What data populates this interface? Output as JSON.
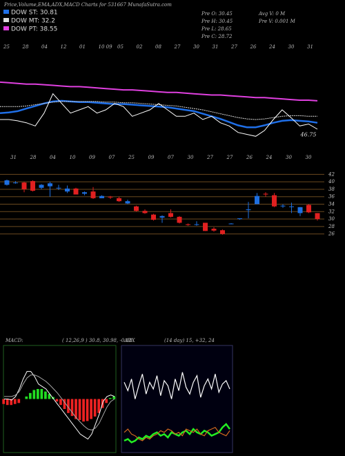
{
  "header": {
    "title": "Price,Volume,EMA,ADX,MACD Charts for 531667 MunafaSutra.com",
    "stats": [
      "Pre  O: 30.45",
      "Pre  H: 30.45",
      "Pre  L: 28.65",
      "Pre  C: 28.72",
      "Avg V: 0  M",
      "Pre  V: 0.001 M"
    ]
  },
  "chart_data": [
    {
      "type": "line",
      "top_labels": [
        "25",
        "28",
        "04",
        "12",
        "01",
        "10 09",
        "05",
        "02",
        "08",
        "27",
        "30",
        "31",
        "27",
        "26",
        "24",
        "30",
        "31"
      ],
      "bottom_labels": [
        "31",
        "28",
        "04",
        "10",
        "09",
        "07",
        "25",
        "09",
        "07",
        "30",
        "27",
        "27",
        "26",
        "24",
        "30",
        "30"
      ],
      "annotation": 46.75,
      "ylim": [
        45,
        60
      ],
      "price": {
        "color": "#ffffff",
        "values": [
          49.5,
          49.5,
          49.3,
          49,
          48.5,
          50.5,
          53.5,
          52,
          50.5,
          51,
          51.5,
          50.5,
          51,
          52,
          51.5,
          50,
          50.5,
          51,
          52,
          51,
          50,
          50,
          50.5,
          49.5,
          50,
          49,
          48.5,
          47.5,
          47.2,
          46.9,
          47.8,
          49.5,
          51,
          49.8,
          48.5,
          48.8,
          48
        ]
      },
      "series": [
        {
          "name": "DOW ST: 30.81",
          "color": "#1f6fe8",
          "values": [
            50.5,
            50.6,
            50.8,
            51.2,
            51.6,
            52,
            52.3,
            52.4,
            52.3,
            52.2,
            52.2,
            52.1,
            52,
            51.9,
            51.9,
            51.8,
            51.7,
            51.6,
            51.5,
            51.4,
            51.2,
            51,
            50.8,
            50.4,
            50,
            49.6,
            49.1,
            48.6,
            48.3,
            48.3,
            48.6,
            49,
            49.3,
            49.4,
            49.3,
            49.2,
            49
          ]
        },
        {
          "name": "DOW MT: 32.2",
          "color": "#dddddd",
          "values": [
            51.5,
            51.5,
            51.5,
            51.6,
            51.8,
            52,
            52.2,
            52.3,
            52.3,
            52.3,
            52.3,
            52.3,
            52.2,
            52.2,
            52.1,
            52.1,
            52,
            51.9,
            51.8,
            51.7,
            51.6,
            51.4,
            51.2,
            51,
            50.7,
            50.4,
            50.1,
            49.8,
            49.6,
            49.5,
            49.6,
            49.8,
            50,
            50.1,
            50.1,
            50,
            50
          ]
        },
        {
          "name": "DOW PT: 38.55",
          "color": "#e040e0",
          "values": [
            55.3,
            55.2,
            55.1,
            55.0,
            55.0,
            54.9,
            54.8,
            54.7,
            54.6,
            54.6,
            54.5,
            54.4,
            54.3,
            54.2,
            54.1,
            54.1,
            54.0,
            53.9,
            53.8,
            53.7,
            53.7,
            53.6,
            53.5,
            53.4,
            53.3,
            53.3,
            53.2,
            53.1,
            53.0,
            52.9,
            52.9,
            52.8,
            52.7,
            52.6,
            52.5,
            52.5,
            52.4
          ]
        }
      ]
    },
    {
      "type": "candlestick",
      "up_color": "#1e6fe0",
      "down_color": "#e02020",
      "grid": true,
      "ylim": [
        25,
        43
      ],
      "yticks": [
        26,
        28,
        30,
        32,
        34,
        36,
        38,
        40,
        42
      ],
      "open": [
        39.2,
        39.8,
        39.8,
        40.2,
        38.4,
        38.8,
        38.4,
        37.4,
        38.2,
        36.8,
        37.4,
        35.6,
        36,
        35.6,
        34.2,
        33.4,
        32.2,
        31.2,
        30.4,
        31.6,
        30.6,
        28.6,
        28.6,
        29,
        27.4,
        27,
        28.8,
        30,
        32.4,
        34,
        36.8,
        36.4,
        33.4,
        33.4,
        31.6,
        33.8,
        31.6
      ],
      "high": [
        40.6,
        40.2,
        40,
        40.4,
        39.4,
        40,
        39.2,
        39,
        38.4,
        37.4,
        38.6,
        36.4,
        36.2,
        36,
        35.2,
        33.6,
        32.6,
        31.4,
        31,
        32.6,
        30.8,
        28.8,
        29.4,
        29,
        27.8,
        27.2,
        28.9,
        30.2,
        34.6,
        37,
        37.2,
        37,
        34,
        34.4,
        33.2,
        34,
        31.6
      ],
      "low": [
        39,
        39.5,
        37.2,
        37.4,
        38,
        36,
        37.8,
        37,
        36.6,
        36.4,
        35.4,
        35.6,
        35.4,
        34.6,
        34,
        32,
        31.4,
        29.6,
        29,
        30.4,
        28.8,
        28.2,
        28.2,
        26.8,
        26.6,
        25.8,
        28.6,
        29.8,
        30.2,
        34,
        36,
        33.2,
        33,
        31.6,
        30.8,
        31.6,
        29.6
      ],
      "close": [
        40.4,
        39.8,
        38,
        37.6,
        39.2,
        39.6,
        38.4,
        38.2,
        36.6,
        37.2,
        35.6,
        36.2,
        35.8,
        34.8,
        34.8,
        32.2,
        31.6,
        29.8,
        30.8,
        30.6,
        29,
        28.4,
        28.6,
        26.8,
        26.9,
        26,
        28.8,
        30.2,
        32.6,
        36.2,
        36.6,
        33.4,
        33.6,
        33.4,
        33.2,
        31.8,
        30
      ]
    },
    {
      "type": "macd",
      "title": "MACD:",
      "subtitle": "( 12,26,9 ) 30.8, 30.98, -0.18",
      "ylim": [
        -1,
        1
      ],
      "pos_color": "#22dd22",
      "neg_color": "#ee2222",
      "histogram": [
        -0.1,
        -0.12,
        -0.12,
        -0.1,
        -0.08,
        0,
        0.05,
        0.12,
        0.18,
        0.2,
        0.2,
        0.15,
        0.1,
        0.04,
        -0.05,
        -0.12,
        -0.2,
        -0.28,
        -0.34,
        -0.4,
        -0.42,
        -0.45,
        -0.44,
        -0.4,
        -0.35,
        -0.28,
        -0.18,
        -0.08,
        0.02,
        0.05
      ],
      "series": [
        {
          "color": "#ffffff",
          "values": [
            0,
            0,
            -0.02,
            0.05,
            0.2,
            0.4,
            0.55,
            0.55,
            0.45,
            0.3,
            0.25,
            0.2,
            0.1,
            0,
            -0.1,
            -0.2,
            -0.3,
            -0.4,
            -0.5,
            -0.6,
            -0.7,
            -0.75,
            -0.8,
            -0.7,
            -0.5,
            -0.3,
            -0.05,
            0.05,
            0.08,
            0.05
          ]
        },
        {
          "color": "#aaaaaa",
          "values": [
            0.05,
            0.05,
            0.05,
            0.08,
            0.15,
            0.3,
            0.42,
            0.48,
            0.48,
            0.45,
            0.4,
            0.35,
            0.28,
            0.2,
            0.12,
            0.02,
            -0.08,
            -0.18,
            -0.28,
            -0.38,
            -0.46,
            -0.54,
            -0.6,
            -0.62,
            -0.58,
            -0.48,
            -0.32,
            -0.16,
            -0.05,
            0
          ]
        }
      ]
    },
    {
      "type": "adx",
      "title": "ADX",
      "subtitle": "(14 day) 15, +32, 24",
      "ylim": [
        0,
        60
      ],
      "series": [
        {
          "color": "#ffffff",
          "values": [
            40,
            35,
            42,
            30,
            38,
            45,
            33,
            40,
            36,
            44,
            32,
            41,
            38,
            30,
            42,
            35,
            46,
            37,
            33,
            40,
            44,
            31,
            38,
            42,
            36,
            45,
            34,
            39,
            41,
            36
          ]
        },
        {
          "color": "#22ee22",
          "values": [
            5,
            6,
            4,
            5,
            7,
            6,
            8,
            7,
            9,
            10,
            8,
            9,
            7,
            10,
            9,
            8,
            10,
            11,
            9,
            12,
            10,
            9,
            11,
            10,
            8,
            9,
            10,
            13,
            15,
            12
          ]
        },
        {
          "color": "#d2691e",
          "values": [
            10,
            12,
            9,
            8,
            6,
            5,
            7,
            6,
            8,
            9,
            11,
            10,
            12,
            11,
            9,
            10,
            8,
            12,
            11,
            10,
            12,
            9,
            8,
            11,
            12,
            13,
            10,
            9,
            8,
            11
          ]
        }
      ]
    }
  ]
}
